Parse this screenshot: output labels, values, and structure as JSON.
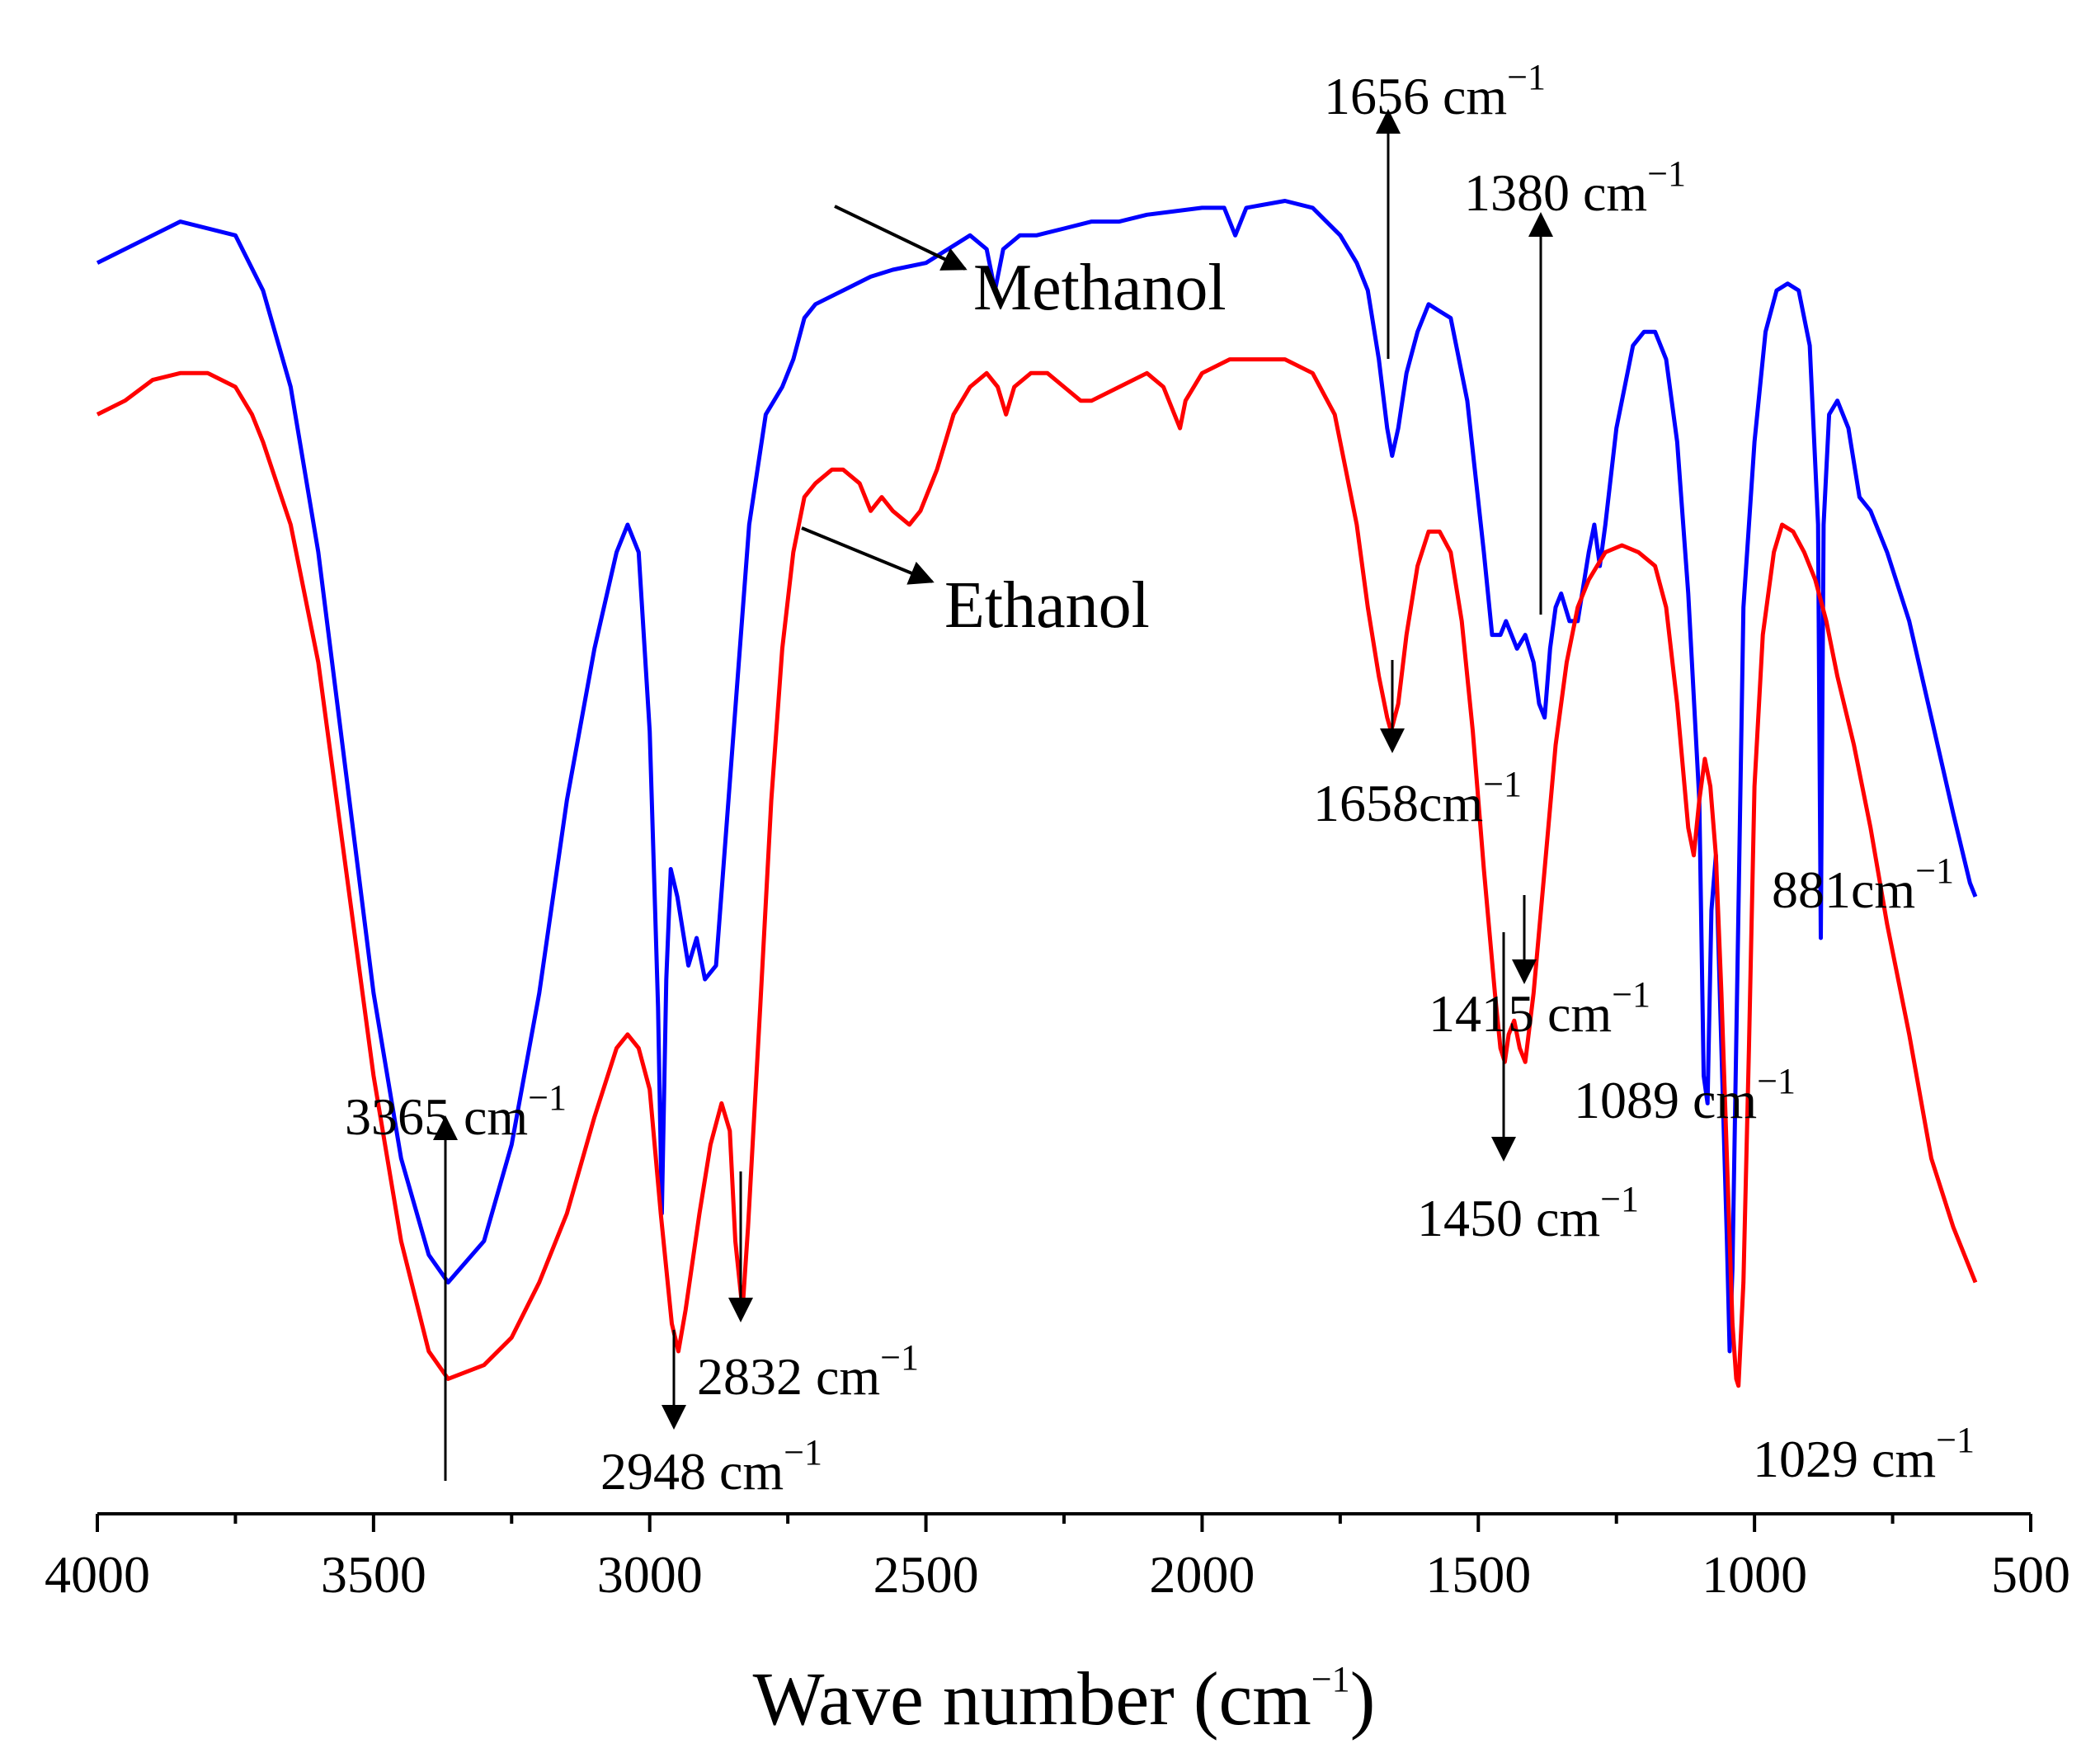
{
  "chart_data": {
    "type": "line",
    "title": "",
    "xlabel": "Wave number (cm",
    "xlabel_sup": "−1",
    "xlabel_close": ")",
    "ylabel": "",
    "xlim": [
      4000,
      500
    ],
    "x_ticks": [
      "4000",
      "3500",
      "3000",
      "2500",
      "2000",
      "1500",
      "1000",
      "500"
    ],
    "x_tick_values": [
      4000,
      3500,
      3000,
      2500,
      2000,
      1500,
      1000,
      500
    ],
    "ylim": [
      0,
      100
    ],
    "grid": false,
    "series": [
      {
        "name": "Methanol",
        "color": "#0000ff",
        "points": [
          [
            4000,
            89
          ],
          [
            3900,
            91
          ],
          [
            3850,
            92
          ],
          [
            3750,
            91
          ],
          [
            3700,
            87
          ],
          [
            3650,
            80
          ],
          [
            3600,
            68
          ],
          [
            3550,
            52
          ],
          [
            3500,
            36
          ],
          [
            3450,
            24
          ],
          [
            3400,
            17
          ],
          [
            3365,
            15
          ],
          [
            3300,
            18
          ],
          [
            3250,
            25
          ],
          [
            3200,
            36
          ],
          [
            3150,
            50
          ],
          [
            3100,
            61
          ],
          [
            3060,
            68
          ],
          [
            3040,
            70
          ],
          [
            3020,
            68
          ],
          [
            3000,
            55
          ],
          [
            2985,
            35
          ],
          [
            2978,
            20
          ],
          [
            2970,
            37
          ],
          [
            2962,
            45
          ],
          [
            2950,
            43
          ],
          [
            2930,
            38
          ],
          [
            2915,
            40
          ],
          [
            2900,
            37
          ],
          [
            2880,
            38
          ],
          [
            2850,
            54
          ],
          [
            2820,
            70
          ],
          [
            2790,
            78
          ],
          [
            2760,
            80
          ],
          [
            2740,
            82
          ],
          [
            2720,
            85
          ],
          [
            2700,
            86
          ],
          [
            2650,
            87
          ],
          [
            2600,
            88
          ],
          [
            2560,
            88.5
          ],
          [
            2500,
            89
          ],
          [
            2460,
            90
          ],
          [
            2420,
            91
          ],
          [
            2390,
            90
          ],
          [
            2375,
            87
          ],
          [
            2360,
            90
          ],
          [
            2330,
            91
          ],
          [
            2300,
            91
          ],
          [
            2250,
            91.5
          ],
          [
            2200,
            92
          ],
          [
            2150,
            92
          ],
          [
            2100,
            92.5
          ],
          [
            2000,
            93
          ],
          [
            1960,
            93
          ],
          [
            1940,
            91
          ],
          [
            1920,
            93
          ],
          [
            1850,
            93.5
          ],
          [
            1800,
            93
          ],
          [
            1750,
            91
          ],
          [
            1720,
            89
          ],
          [
            1700,
            87
          ],
          [
            1680,
            82
          ],
          [
            1665,
            77
          ],
          [
            1656,
            75
          ],
          [
            1645,
            77
          ],
          [
            1630,
            81
          ],
          [
            1610,
            84
          ],
          [
            1590,
            86
          ],
          [
            1570,
            85.5
          ],
          [
            1550,
            85
          ],
          [
            1520,
            79
          ],
          [
            1490,
            68
          ],
          [
            1475,
            62
          ],
          [
            1460,
            62
          ],
          [
            1450,
            63
          ],
          [
            1440,
            62
          ],
          [
            1430,
            61
          ],
          [
            1415,
            62
          ],
          [
            1400,
            60
          ],
          [
            1390,
            57
          ],
          [
            1380,
            56
          ],
          [
            1370,
            61
          ],
          [
            1360,
            64
          ],
          [
            1350,
            65
          ],
          [
            1335,
            63
          ],
          [
            1320,
            63
          ],
          [
            1300,
            68
          ],
          [
            1290,
            70
          ],
          [
            1280,
            67
          ],
          [
            1270,
            70
          ],
          [
            1250,
            77
          ],
          [
            1220,
            83
          ],
          [
            1200,
            84
          ],
          [
            1180,
            84
          ],
          [
            1160,
            82
          ],
          [
            1140,
            76
          ],
          [
            1120,
            65
          ],
          [
            1100,
            50
          ],
          [
            1092,
            30
          ],
          [
            1085,
            28
          ],
          [
            1078,
            42
          ],
          [
            1070,
            46
          ],
          [
            1060,
            32
          ],
          [
            1050,
            18
          ],
          [
            1045,
            10
          ],
          [
            1040,
            16
          ],
          [
            1030,
            40
          ],
          [
            1020,
            64
          ],
          [
            1000,
            76
          ],
          [
            980,
            84
          ],
          [
            960,
            87
          ],
          [
            940,
            87.5
          ],
          [
            920,
            87
          ],
          [
            900,
            83
          ],
          [
            885,
            70
          ],
          [
            880,
            40
          ],
          [
            875,
            70
          ],
          [
            865,
            78
          ],
          [
            850,
            79
          ],
          [
            830,
            77
          ],
          [
            810,
            72
          ],
          [
            790,
            71
          ],
          [
            760,
            68
          ],
          [
            720,
            63
          ],
          [
            680,
            56
          ],
          [
            640,
            49
          ],
          [
            610,
            44
          ],
          [
            600,
            43
          ]
        ]
      },
      {
        "name": "Ethanol",
        "color": "#ff0000",
        "points": [
          [
            4000,
            78
          ],
          [
            3950,
            79
          ],
          [
            3900,
            80.5
          ],
          [
            3850,
            81
          ],
          [
            3800,
            81
          ],
          [
            3750,
            80
          ],
          [
            3720,
            78
          ],
          [
            3700,
            76
          ],
          [
            3650,
            70
          ],
          [
            3600,
            60
          ],
          [
            3550,
            45
          ],
          [
            3500,
            30
          ],
          [
            3450,
            18
          ],
          [
            3400,
            10
          ],
          [
            3365,
            8
          ],
          [
            3300,
            9
          ],
          [
            3250,
            11
          ],
          [
            3200,
            15
          ],
          [
            3150,
            20
          ],
          [
            3100,
            27
          ],
          [
            3060,
            32
          ],
          [
            3040,
            33
          ],
          [
            3020,
            32
          ],
          [
            3000,
            29
          ],
          [
            2980,
            20
          ],
          [
            2960,
            12
          ],
          [
            2948,
            10
          ],
          [
            2935,
            13
          ],
          [
            2910,
            20
          ],
          [
            2890,
            25
          ],
          [
            2870,
            28
          ],
          [
            2855,
            26
          ],
          [
            2845,
            18
          ],
          [
            2832,
            13
          ],
          [
            2822,
            19
          ],
          [
            2800,
            35
          ],
          [
            2780,
            50
          ],
          [
            2760,
            61
          ],
          [
            2740,
            68
          ],
          [
            2720,
            72
          ],
          [
            2700,
            73
          ],
          [
            2670,
            74
          ],
          [
            2650,
            74
          ],
          [
            2620,
            73
          ],
          [
            2600,
            71
          ],
          [
            2580,
            72
          ],
          [
            2560,
            71
          ],
          [
            2530,
            70
          ],
          [
            2510,
            71
          ],
          [
            2480,
            74
          ],
          [
            2450,
            78
          ],
          [
            2420,
            80
          ],
          [
            2390,
            81
          ],
          [
            2370,
            80
          ],
          [
            2355,
            78
          ],
          [
            2340,
            80
          ],
          [
            2310,
            81
          ],
          [
            2280,
            81
          ],
          [
            2250,
            80
          ],
          [
            2220,
            79
          ],
          [
            2200,
            79
          ],
          [
            2150,
            80
          ],
          [
            2100,
            81
          ],
          [
            2070,
            80
          ],
          [
            2050,
            78
          ],
          [
            2040,
            77
          ],
          [
            2030,
            79
          ],
          [
            2000,
            81
          ],
          [
            1950,
            82
          ],
          [
            1900,
            82
          ],
          [
            1850,
            82
          ],
          [
            1800,
            81
          ],
          [
            1760,
            78
          ],
          [
            1740,
            74
          ],
          [
            1720,
            70
          ],
          [
            1700,
            64
          ],
          [
            1680,
            59
          ],
          [
            1665,
            56
          ],
          [
            1658,
            55
          ],
          [
            1645,
            57
          ],
          [
            1630,
            62
          ],
          [
            1610,
            67
          ],
          [
            1590,
            69.5
          ],
          [
            1570,
            69.5
          ],
          [
            1550,
            68
          ],
          [
            1530,
            63
          ],
          [
            1510,
            55
          ],
          [
            1490,
            45
          ],
          [
            1470,
            36
          ],
          [
            1460,
            32
          ],
          [
            1452,
            31
          ],
          [
            1445,
            33
          ],
          [
            1435,
            34
          ],
          [
            1425,
            32
          ],
          [
            1415,
            31
          ],
          [
            1400,
            36
          ],
          [
            1380,
            45
          ],
          [
            1360,
            54
          ],
          [
            1340,
            60
          ],
          [
            1320,
            64
          ],
          [
            1300,
            66
          ],
          [
            1270,
            68
          ],
          [
            1240,
            68.5
          ],
          [
            1210,
            68
          ],
          [
            1180,
            67
          ],
          [
            1160,
            64
          ],
          [
            1140,
            57
          ],
          [
            1120,
            48
          ],
          [
            1110,
            46
          ],
          [
            1100,
            50
          ],
          [
            1090,
            53
          ],
          [
            1080,
            51
          ],
          [
            1070,
            46
          ],
          [
            1060,
            36
          ],
          [
            1050,
            24
          ],
          [
            1040,
            12
          ],
          [
            1033,
            8
          ],
          [
            1029,
            7.5
          ],
          [
            1020,
            15
          ],
          [
            1010,
            32
          ],
          [
            1000,
            51
          ],
          [
            985,
            62
          ],
          [
            965,
            68
          ],
          [
            950,
            70
          ],
          [
            930,
            69.5
          ],
          [
            910,
            68
          ],
          [
            890,
            66
          ],
          [
            870,
            63
          ],
          [
            850,
            59
          ],
          [
            820,
            54
          ],
          [
            790,
            48
          ],
          [
            760,
            41
          ],
          [
            720,
            33
          ],
          [
            680,
            24
          ],
          [
            640,
            19
          ],
          [
            610,
            16
          ],
          [
            600,
            15
          ]
        ]
      }
    ],
    "series_labels": [
      {
        "name": "Methanol",
        "text": "Methanol"
      },
      {
        "name": "Ethanol",
        "text": "Ethanol"
      }
    ],
    "annotations": [
      {
        "text": "3365 cm",
        "sup": "−1",
        "x": 3365,
        "direction": "up"
      },
      {
        "text": "2948 cm",
        "sup": "−1",
        "x": 2948,
        "direction": "down"
      },
      {
        "text": "2832 cm",
        "sup": "−1",
        "x": 2832,
        "direction": "down"
      },
      {
        "text": "1656 cm",
        "sup": "−1",
        "x": 1656,
        "direction": "up"
      },
      {
        "text": "1380 cm",
        "sup": "−1",
        "x": 1380,
        "direction": "up"
      },
      {
        "text": "1658cm",
        "sup": "−1",
        "x": 1658,
        "direction": "down"
      },
      {
        "text": "1415 cm",
        "sup": "−1",
        "x": 1415,
        "direction": "down"
      },
      {
        "text": "1450 cm",
        "sup": "−1",
        "x": 1450,
        "direction": "down"
      },
      {
        "text": "1089 cm",
        "sup": "−1",
        "x": 1089,
        "direction": "none"
      },
      {
        "text": "881cm",
        "sup": "−1",
        "x": 881,
        "direction": "none"
      },
      {
        "text": "1029 cm",
        "sup": "−1",
        "x": 1029,
        "direction": "none"
      }
    ]
  }
}
